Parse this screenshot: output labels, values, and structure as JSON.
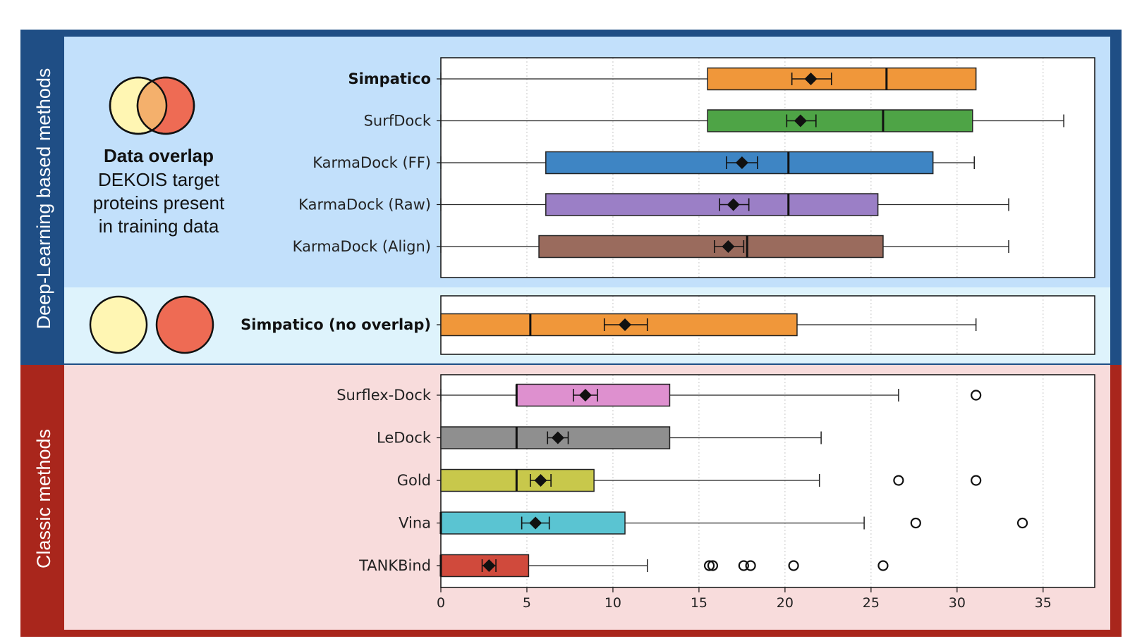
{
  "figure": {
    "section_labels": {
      "deep_learning": "Deep-Learning based methods",
      "classic": "Classic methods"
    },
    "overlap_note": {
      "title": "Data overlap",
      "lines": [
        "DEKOIS target",
        "proteins present",
        "in training data"
      ]
    },
    "colors": {
      "dl_band": "#1f4e85",
      "dl_bg": "#c2e0fb",
      "no_overlap_bg": "#def3fc",
      "classic_band": "#a9261c",
      "classic_bg": "#f8dcdc",
      "venn_left": "#fff6b3",
      "venn_right": "#ee6b54",
      "venn_overlap": "#f4b06c"
    }
  },
  "chart_data": [
    {
      "type": "box",
      "panel": "deep-learning",
      "xlim": [
        0,
        38
      ],
      "xticks": [
        0,
        5,
        10,
        15,
        20,
        25,
        30,
        35
      ],
      "show_tick_labels": false,
      "grid": "vertical dotted",
      "series": [
        {
          "name": "Simpatico",
          "bold": true,
          "color": "#f0973a",
          "whisker_low": 0,
          "q1": 15.5,
          "median": 25.9,
          "q3": 31.1,
          "whisker_high": 31.1,
          "mean": 21.5,
          "ci": [
            20.4,
            22.7
          ],
          "outliers": []
        },
        {
          "name": "SurfDock",
          "bold": false,
          "color": "#4ea446",
          "whisker_low": 0,
          "q1": 15.5,
          "median": 25.7,
          "q3": 30.9,
          "whisker_high": 36.2,
          "mean": 20.9,
          "ci": [
            20.1,
            21.8
          ],
          "outliers": []
        },
        {
          "name": "KarmaDock (FF)",
          "bold": false,
          "color": "#3e85c4",
          "whisker_low": 0,
          "q1": 6.1,
          "median": 20.2,
          "q3": 28.6,
          "whisker_high": 31.0,
          "mean": 17.5,
          "ci": [
            16.6,
            18.4
          ],
          "outliers": []
        },
        {
          "name": "KarmaDock (Raw)",
          "bold": false,
          "color": "#9b7fc6",
          "whisker_low": 0,
          "q1": 6.1,
          "median": 20.2,
          "q3": 25.4,
          "whisker_high": 33.0,
          "mean": 17.0,
          "ci": [
            16.2,
            17.9
          ],
          "outliers": []
        },
        {
          "name": "KarmaDock (Align)",
          "bold": false,
          "color": "#9a6b5d",
          "whisker_low": 0,
          "q1": 5.7,
          "median": 17.8,
          "q3": 25.7,
          "whisker_high": 33.0,
          "mean": 16.7,
          "ci": [
            15.9,
            17.6
          ],
          "outliers": []
        }
      ]
    },
    {
      "type": "box",
      "panel": "no-overlap",
      "xlim": [
        0,
        38
      ],
      "xticks": [
        0,
        5,
        10,
        15,
        20,
        25,
        30,
        35
      ],
      "show_tick_labels": false,
      "grid": "vertical dotted",
      "series": [
        {
          "name": "Simpatico (no overlap)",
          "bold": true,
          "color": "#f0973a",
          "whisker_low": 0,
          "q1": 0,
          "median": 5.2,
          "q3": 20.7,
          "whisker_high": 31.1,
          "mean": 10.7,
          "ci": [
            9.5,
            12.0
          ],
          "outliers": []
        }
      ]
    },
    {
      "type": "box",
      "panel": "classic",
      "xlim": [
        0,
        38
      ],
      "xticks": [
        0,
        5,
        10,
        15,
        20,
        25,
        30,
        35
      ],
      "tick_labels": [
        "0",
        "5",
        "10",
        "15",
        "20",
        "25",
        "30",
        "35"
      ],
      "show_tick_labels": true,
      "grid": "vertical dotted",
      "series": [
        {
          "name": "Surflex-Dock",
          "bold": false,
          "color": "#de90cf",
          "whisker_low": 0,
          "q1": 4.4,
          "median": 4.4,
          "q3": 13.3,
          "whisker_high": 26.6,
          "mean": 8.4,
          "ci": [
            7.7,
            9.1
          ],
          "outliers": [
            31.1
          ]
        },
        {
          "name": "LeDock",
          "bold": false,
          "color": "#8f8f8f",
          "whisker_low": 0,
          "q1": 0,
          "median": 4.4,
          "q3": 13.3,
          "whisker_high": 22.1,
          "mean": 6.8,
          "ci": [
            6.2,
            7.4
          ],
          "outliers": []
        },
        {
          "name": "Gold",
          "bold": false,
          "color": "#c8c84b",
          "whisker_low": 0,
          "q1": 0,
          "median": 4.4,
          "q3": 8.9,
          "whisker_high": 22.0,
          "mean": 5.8,
          "ci": [
            5.2,
            6.4
          ],
          "outliers": [
            26.6,
            31.1
          ]
        },
        {
          "name": "Vina",
          "bold": false,
          "color": "#5ac4d2",
          "whisker_low": 0,
          "q1": 0,
          "median": 0,
          "q3": 10.7,
          "whisker_high": 24.6,
          "mean": 5.5,
          "ci": [
            4.7,
            6.3
          ],
          "outliers": [
            27.6,
            33.8
          ]
        },
        {
          "name": "TANKBind",
          "bold": false,
          "color": "#d04a3c",
          "whisker_low": 0,
          "q1": 0,
          "median": 0,
          "q3": 5.1,
          "whisker_high": 12.0,
          "mean": 2.8,
          "ci": [
            2.4,
            3.2
          ],
          "outliers": [
            15.6,
            15.8,
            17.6,
            18.0,
            20.5,
            25.7
          ]
        }
      ]
    }
  ]
}
